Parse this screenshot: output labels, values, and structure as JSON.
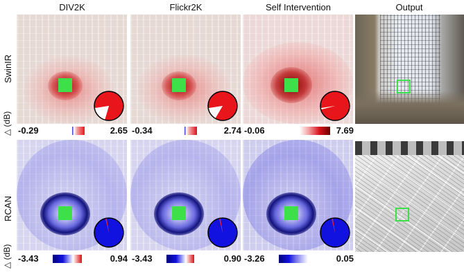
{
  "columns": [
    "DIV2K",
    "Flickr2K",
    "Self Intervention",
    "Output"
  ],
  "rows": [
    {
      "label": "SwinIR",
      "delta_label": "△ (dB)",
      "panels": [
        {
          "min": "-0.29",
          "max": "2.65",
          "pie_fraction": 0.82
        },
        {
          "min": "-0.34",
          "max": "2.74",
          "pie_fraction": 0.86
        },
        {
          "min": "-0.06",
          "max": "7.69",
          "pie_fraction": 0.985
        }
      ]
    },
    {
      "label": "RCAN",
      "delta_label": "△ (dB)",
      "panels": [
        {
          "min": "-3.43",
          "max": "0.94",
          "pie_fraction": 0.985
        },
        {
          "min": "-3.43",
          "max": "0.90",
          "pie_fraction": 0.985
        },
        {
          "min": "-3.26",
          "max": "0.05",
          "pie_fraction": 0.985
        }
      ]
    }
  ],
  "colors": {
    "positive": "#e8161b",
    "negative": "#1212e0",
    "highlight": "#3ee04a"
  }
}
